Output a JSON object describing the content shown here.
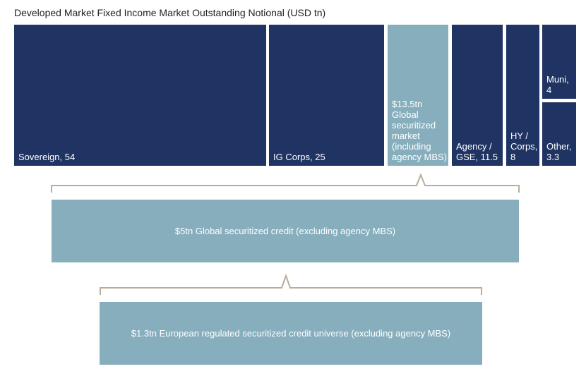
{
  "chart_data": {
    "type": "treemap",
    "title": "Developed Market Fixed Income Market Outstanding Notional (USD tn)",
    "units": "USD tn",
    "segments": [
      {
        "name": "Sovereign",
        "value": 54,
        "label": "Sovereign, 54",
        "color": "#1f3463"
      },
      {
        "name": "IG Corps",
        "value": 25,
        "label": "IG Corps, 25",
        "color": "#1f3463"
      },
      {
        "name": "Global securitized market (including agency MBS)",
        "value": 13.5,
        "label": "$13.5tn\nGlobal\nsecuritized\nmarket\n(including\nagency MBS)",
        "color": "#86aebd"
      },
      {
        "name": "Agency / GSE",
        "value": 11.5,
        "label": "Agency /\nGSE, 11.5",
        "color": "#1f3463"
      },
      {
        "name": "HY / Corps",
        "value": 8,
        "label": "HY /\nCorps,\n8",
        "color": "#1f3463"
      },
      {
        "name": "Muni",
        "value": 4,
        "label": "Muni,\n4",
        "color": "#1f3463"
      },
      {
        "name": "Other",
        "value": 3.3,
        "label": "Other,\n3.3",
        "color": "#1f3463"
      }
    ],
    "breakdown": [
      {
        "name": "Global securitized credit (excluding agency MBS)",
        "value": 5,
        "label": "$5tn Global securitized credit (excluding agency MBS)"
      },
      {
        "name": "European regulated securitized credit universe (excluding agency MBS)",
        "value": 1.3,
        "label": "$1.3tn European regulated securitized credit universe (excluding agency MBS)"
      }
    ],
    "colors": {
      "dark": "#1f3463",
      "light": "#86aebd",
      "bracket": "#b8ad9c"
    }
  }
}
